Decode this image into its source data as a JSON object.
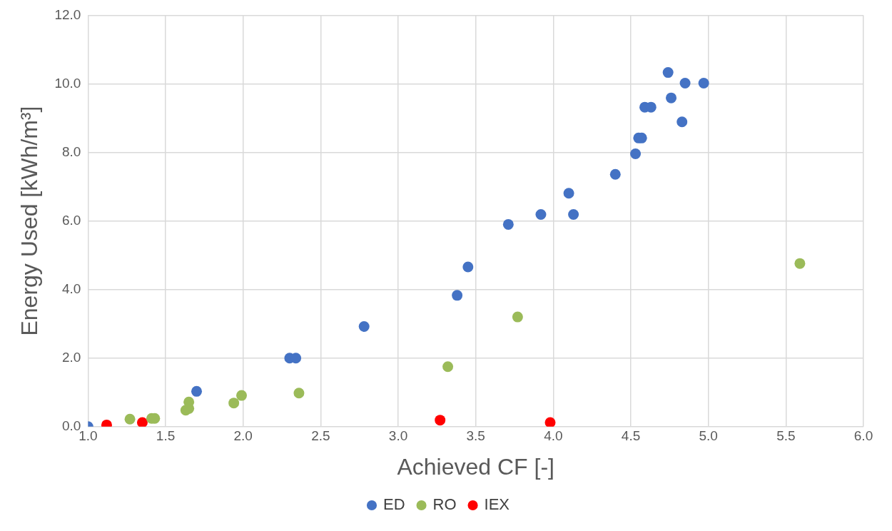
{
  "chart_data": {
    "type": "scatter",
    "xlabel": "Achieved CF [-]",
    "ylabel": "Energy Used [kWh/m³]",
    "xlim": [
      1,
      6
    ],
    "ylim": [
      0,
      12
    ],
    "xticks": [
      {
        "value": 1,
        "label": "1.0"
      },
      {
        "value": 1.5,
        "label": "1.5"
      },
      {
        "value": 2,
        "label": "2.0"
      },
      {
        "value": 2.5,
        "label": "2.5"
      },
      {
        "value": 3,
        "label": "3.0"
      },
      {
        "value": 3.5,
        "label": "3.5"
      },
      {
        "value": 4,
        "label": "4.0"
      },
      {
        "value": 4.5,
        "label": "4.5"
      },
      {
        "value": 5,
        "label": "5.0"
      },
      {
        "value": 5.5,
        "label": "5.5"
      },
      {
        "value": 6,
        "label": "6.0"
      }
    ],
    "yticks": [
      {
        "value": 0,
        "label": "0.0"
      },
      {
        "value": 2,
        "label": "2.0"
      },
      {
        "value": 4,
        "label": "4.0"
      },
      {
        "value": 6,
        "label": "6.0"
      },
      {
        "value": 8,
        "label": "8.0"
      },
      {
        "value": 10,
        "label": "10.0"
      },
      {
        "value": 12,
        "label": "12.0"
      }
    ],
    "grid": true,
    "legend": "bottom",
    "marker": "circle",
    "series": [
      {
        "name": "ED",
        "color": "#4472c4",
        "x": [
          1.0,
          1.7,
          2.3,
          2.34,
          2.78,
          3.38,
          3.45,
          3.71,
          3.92,
          4.1,
          4.13,
          4.4,
          4.53,
          4.55,
          4.57,
          4.59,
          4.63,
          4.74,
          4.76,
          4.83,
          4.85,
          4.97
        ],
        "values": [
          0.0,
          1.03,
          2.0,
          2.0,
          2.92,
          3.83,
          4.66,
          5.9,
          6.19,
          6.81,
          6.19,
          7.36,
          7.96,
          8.42,
          8.42,
          9.32,
          9.32,
          10.33,
          9.59,
          8.89,
          10.02,
          10.02
        ]
      },
      {
        "name": "RO",
        "color": "#9bbb59",
        "x": [
          1.27,
          1.41,
          1.43,
          1.63,
          1.65,
          1.65,
          1.94,
          1.99,
          2.36,
          3.32,
          3.77,
          5.59
        ],
        "values": [
          0.22,
          0.24,
          0.24,
          0.48,
          0.72,
          0.53,
          0.69,
          0.91,
          0.98,
          1.75,
          3.2,
          4.76
        ]
      },
      {
        "name": "IEX",
        "color": "#ff0000",
        "x": [
          1.12,
          1.35,
          3.27,
          3.98
        ],
        "values": [
          0.05,
          0.12,
          0.19,
          0.12
        ]
      }
    ]
  }
}
